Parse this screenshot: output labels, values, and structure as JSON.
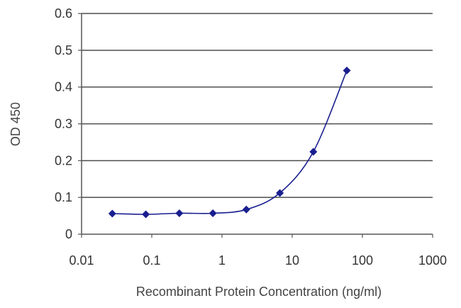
{
  "chart_data": {
    "type": "scatter",
    "xlabel": "Recombinant Protein Concentration (ng/ml)",
    "ylabel": "OD 450",
    "x_scale": "log",
    "xlim": [
      0.01,
      1000
    ],
    "ylim": [
      0,
      0.6
    ],
    "x_ticks": [
      0.01,
      0.1,
      1,
      10,
      100,
      1000
    ],
    "x_tick_labels": [
      "0.01",
      "0.1",
      "1",
      "10",
      "100",
      "1000"
    ],
    "y_ticks": [
      0,
      0.1,
      0.2,
      0.3,
      0.4,
      0.5,
      0.6
    ],
    "y_tick_labels": [
      "0",
      "0.1",
      "0.2",
      "0.3",
      "0.4",
      "0.5",
      "0.6"
    ],
    "grid": "horizontal",
    "series": [
      {
        "x": [
          0.0274,
          0.0823,
          0.247,
          0.741,
          2.22,
          6.67,
          20,
          60
        ],
        "y": [
          0.056,
          0.054,
          0.057,
          0.057,
          0.067,
          0.112,
          0.224,
          0.445
        ],
        "marker": "diamond",
        "fit_curve": true
      }
    ],
    "colors": {
      "series": "#1a1f8f",
      "grid": "#4d4d4d",
      "axis": "#555555"
    }
  }
}
